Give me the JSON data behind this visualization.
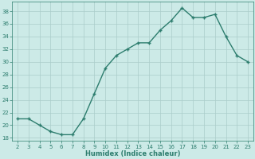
{
  "x": [
    2,
    3,
    4,
    5,
    6,
    7,
    8,
    9,
    10,
    11,
    12,
    13,
    14,
    15,
    16,
    17,
    18,
    19,
    20,
    21,
    22,
    23
  ],
  "y": [
    21,
    21,
    20,
    19,
    18.5,
    18.5,
    21,
    25,
    29,
    31,
    32,
    33,
    33,
    35,
    36.5,
    38.5,
    37,
    37,
    37.5,
    34,
    31,
    30
  ],
  "xlabel": "Humidex (Indice chaleur)",
  "ylim": [
    17.5,
    39.5
  ],
  "xlim": [
    1.5,
    23.5
  ],
  "yticks": [
    18,
    20,
    22,
    24,
    26,
    28,
    30,
    32,
    34,
    36,
    38
  ],
  "xticks": [
    2,
    3,
    4,
    5,
    6,
    7,
    8,
    9,
    10,
    11,
    12,
    13,
    14,
    15,
    16,
    17,
    18,
    19,
    20,
    21,
    22,
    23
  ],
  "line_color": "#2d7d6e",
  "marker_color": "#2d7d6e",
  "bg_color": "#cceae7",
  "grid_color": "#aaccca",
  "tick_color": "#2d7d6e",
  "label_color": "#2d7d6e"
}
